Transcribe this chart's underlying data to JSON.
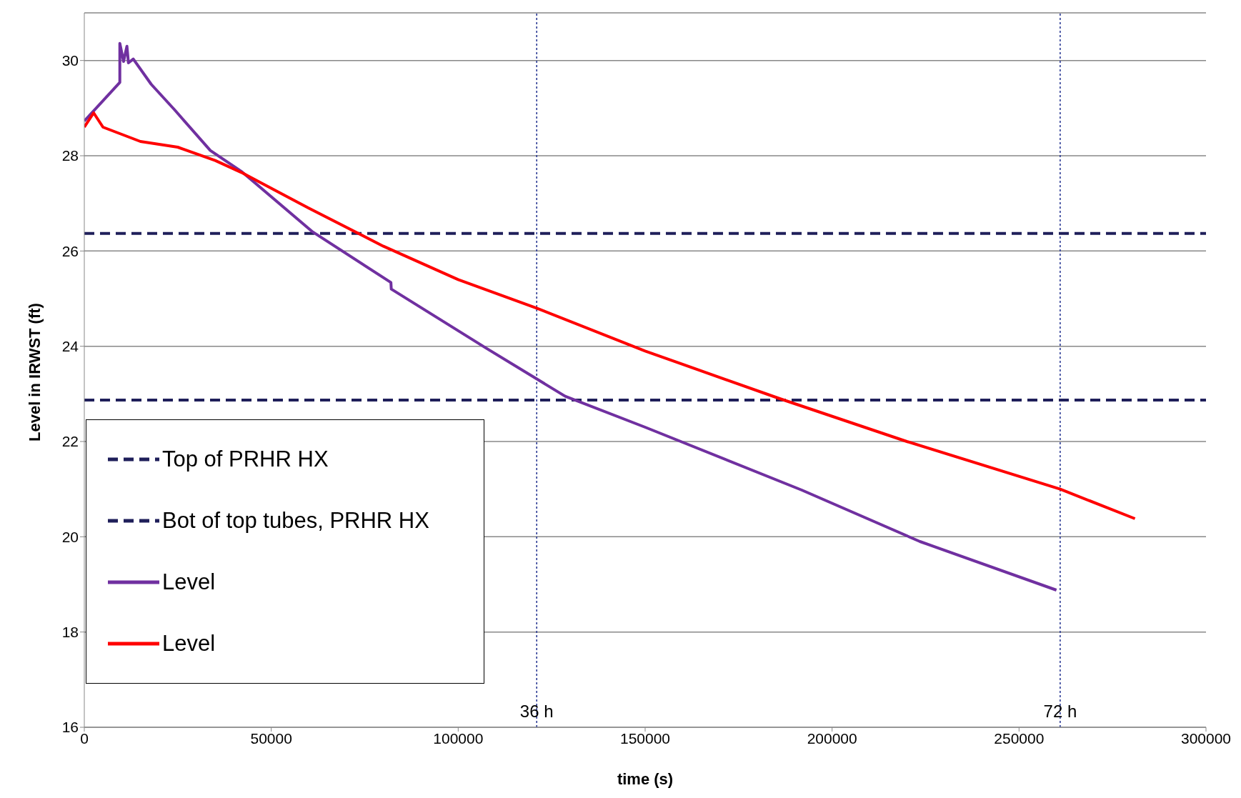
{
  "chart_data": {
    "type": "line",
    "xlabel": "time (s)",
    "ylabel": "Level in IRWST (ft)",
    "xlim": [
      0,
      300000
    ],
    "xticks": [
      0,
      50000,
      100000,
      150000,
      200000,
      250000,
      300000
    ],
    "ylim": [
      16,
      31
    ],
    "yticks": [
      16,
      18,
      20,
      22,
      24,
      26,
      28,
      30
    ],
    "grid": "y",
    "legend": "bottom left",
    "marker": "none",
    "series": [
      {
        "name": "Top of PRHR HX",
        "color": "#1f1f5a",
        "line_style": "dashed",
        "x": [
          0,
          300000
        ],
        "values": [
          26.37,
          26.37
        ]
      },
      {
        "name": "Bot of top tubes, PRHR HX",
        "color": "#1f1f5a",
        "line_style": "dashed",
        "x": [
          0,
          300000
        ],
        "values": [
          22.87,
          22.87
        ]
      },
      {
        "name": "Level",
        "color": "#7030a0",
        "line_style": "solid",
        "x": [
          0,
          9500,
          9500,
          10500,
          11400,
          11800,
          13100,
          17900,
          24200,
          33700,
          42200,
          61100,
          82000,
          82100,
          107500,
          128600,
          150000,
          191900,
          223500,
          260000
        ],
        "values": [
          28.73,
          29.54,
          30.36,
          29.98,
          30.3,
          29.95,
          30.03,
          29.5,
          28.96,
          28.11,
          27.66,
          26.4,
          25.34,
          25.2,
          23.96,
          22.95,
          22.3,
          20.98,
          19.9,
          18.88
        ]
      },
      {
        "name": "Level",
        "color": "#ff0000",
        "line_style": "solid",
        "x": [
          0,
          2500,
          5000,
          10000,
          15000,
          25000,
          35000,
          42000,
          60000,
          80000,
          100000,
          121000,
          150000,
          186000,
          220000,
          261000,
          281000
        ],
        "values": [
          28.6,
          28.9,
          28.6,
          28.45,
          28.3,
          28.18,
          27.9,
          27.65,
          26.9,
          26.1,
          25.4,
          24.8,
          23.9,
          22.9,
          22.0,
          21.0,
          20.38
        ]
      }
    ],
    "ref_lines": [
      {
        "axis": "x",
        "value": 121000,
        "label": "36 h",
        "color": "#1f2f8f",
        "line_style": "dotted"
      },
      {
        "axis": "x",
        "value": 261000,
        "label": "72 h",
        "color": "#1f2f8f",
        "line_style": "dotted"
      }
    ]
  }
}
